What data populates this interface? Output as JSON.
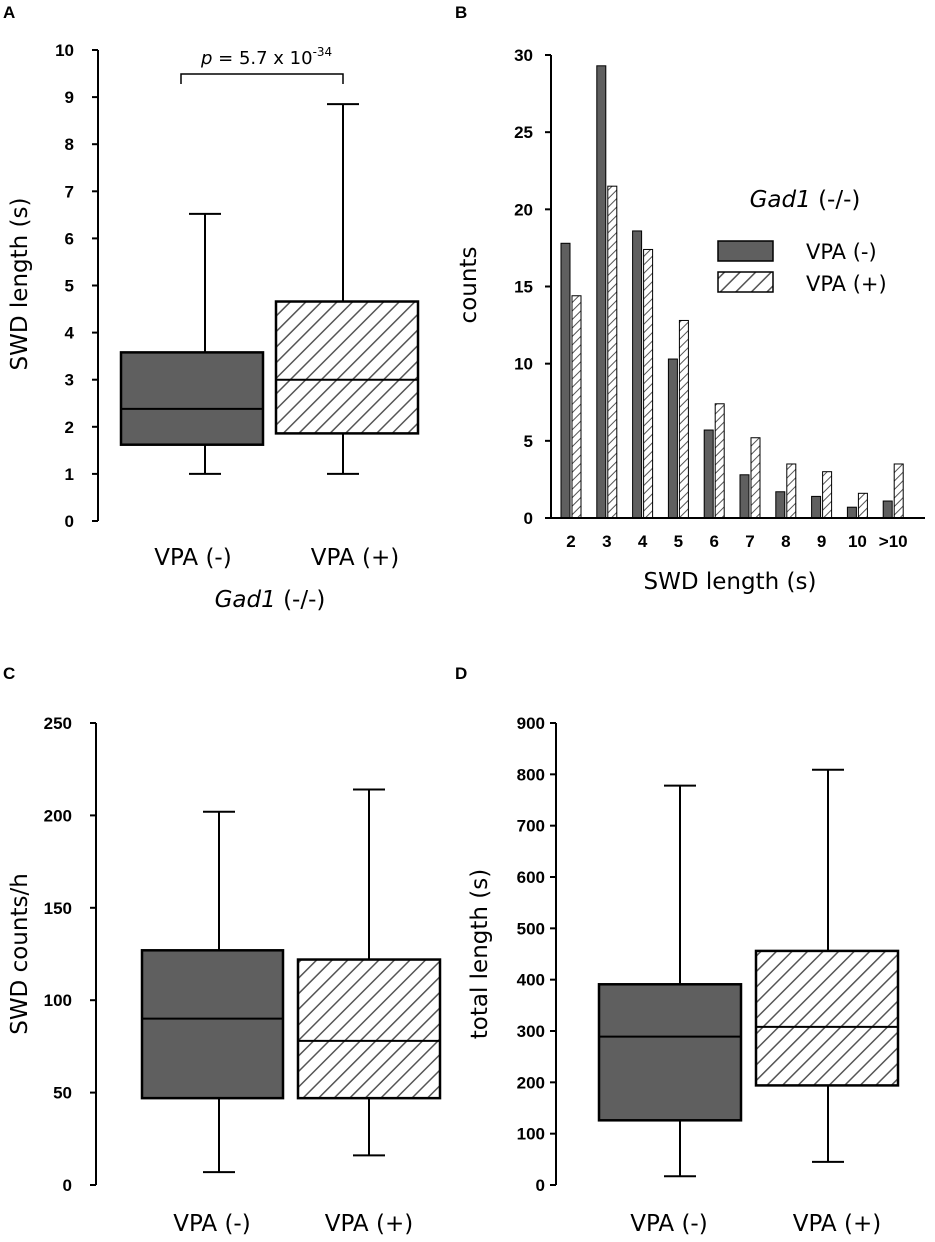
{
  "colors": {
    "solid": "#5f5f5f",
    "hatch": "#555555",
    "line": "#000000"
  },
  "chart_data": [
    {
      "id": "A",
      "type": "box",
      "panel_label": "A",
      "ylabel": "SWD length (s)",
      "xlabel_italic": "Gad1",
      "xlabel_rest": " (-/-)",
      "ylim": [
        0,
        10
      ],
      "yticks": [
        "0",
        "1",
        "2",
        "3",
        "4",
        "5",
        "6",
        "7",
        "8",
        "9",
        "10"
      ],
      "categories": [
        "VPA (-)",
        "VPA (+)"
      ],
      "boxes": [
        {
          "name": "VPA (-)",
          "min": 1.0,
          "q1": 1.62,
          "median": 2.38,
          "q3": 3.58,
          "max": 6.52,
          "fill": "solid"
        },
        {
          "name": "VPA (+)",
          "min": 1.0,
          "q1": 1.86,
          "median": 3.0,
          "q3": 4.66,
          "max": 8.85,
          "fill": "hatch"
        }
      ],
      "annotation": {
        "p_italic": "p",
        "p_rest": " = 5.7 x 10",
        "p_exp": "-34"
      }
    },
    {
      "id": "B",
      "type": "bar",
      "panel_label": "B",
      "ylabel": "counts",
      "xlabel": "SWD length (s)",
      "ylim": [
        0,
        30
      ],
      "yticks": [
        "0",
        "5",
        "10",
        "15",
        "20",
        "25",
        "30"
      ],
      "categories": [
        "2",
        "3",
        "4",
        "5",
        "6",
        "7",
        "8",
        "9",
        "10",
        ">10"
      ],
      "series": [
        {
          "name": "VPA (-)",
          "fill": "solid",
          "values": [
            17.8,
            29.3,
            18.6,
            10.3,
            5.7,
            2.8,
            1.7,
            1.4,
            0.7,
            1.1
          ]
        },
        {
          "name": "VPA (+)",
          "fill": "hatch",
          "values": [
            14.4,
            21.5,
            17.4,
            12.8,
            7.4,
            5.2,
            3.5,
            3.0,
            1.6,
            3.5
          ]
        }
      ],
      "legend_title_italic": "Gad1",
      "legend_title_rest": " (-/-)",
      "legend_position": "top-right"
    },
    {
      "id": "C",
      "type": "box",
      "panel_label": "C",
      "ylabel": "SWD counts/h",
      "ylim": [
        0,
        250
      ],
      "yticks": [
        "0",
        "50",
        "100",
        "150",
        "200",
        "250"
      ],
      "categories": [
        "VPA (-)",
        "VPA (+)"
      ],
      "boxes": [
        {
          "name": "VPA (-)",
          "min": 7,
          "q1": 47,
          "median": 90,
          "q3": 127,
          "max": 202,
          "fill": "solid"
        },
        {
          "name": "VPA (+)",
          "min": 16,
          "q1": 47,
          "median": 78,
          "q3": 122,
          "max": 214,
          "fill": "hatch"
        }
      ]
    },
    {
      "id": "D",
      "type": "box",
      "panel_label": "D",
      "ylabel": "total length (s)",
      "ylim": [
        0,
        900
      ],
      "yticks": [
        "0",
        "100",
        "200",
        "300",
        "400",
        "500",
        "600",
        "700",
        "800",
        "900"
      ],
      "categories": [
        "VPA (-)",
        "VPA (+)"
      ],
      "boxes": [
        {
          "name": "VPA (-)",
          "min": 17,
          "q1": 126,
          "median": 289,
          "q3": 391,
          "max": 778,
          "fill": "solid"
        },
        {
          "name": "VPA (+)",
          "min": 45,
          "q1": 194,
          "median": 308,
          "q3": 456,
          "max": 809,
          "fill": "hatch"
        }
      ]
    }
  ]
}
